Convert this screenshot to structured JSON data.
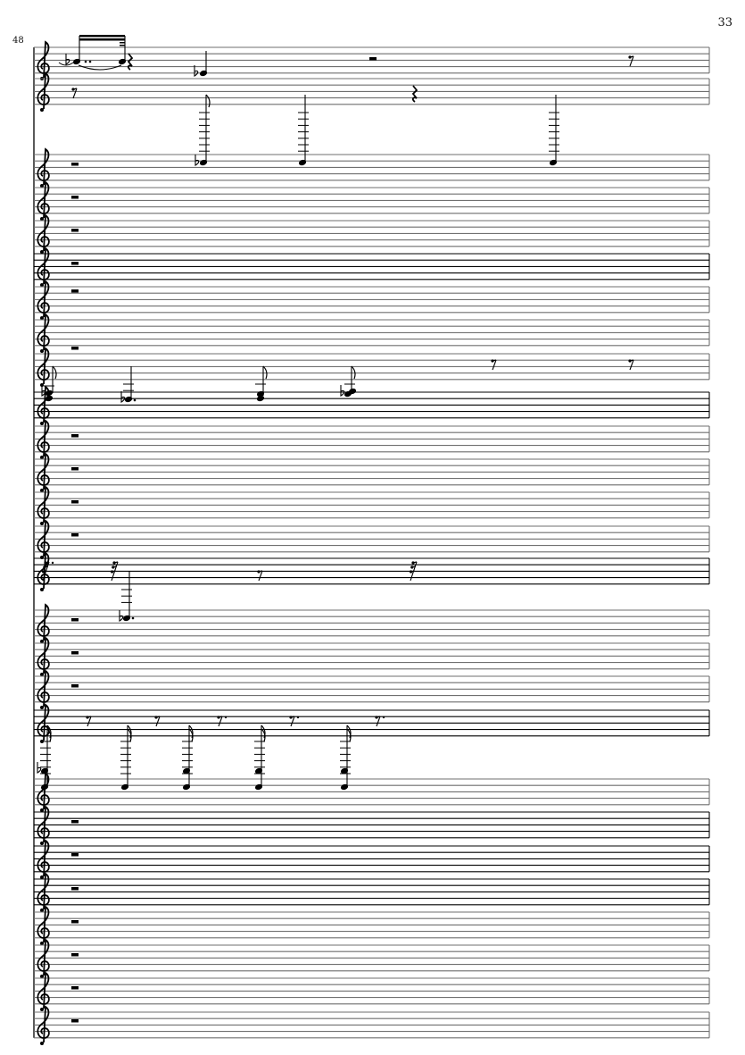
{
  "page": {
    "page_number": "33",
    "measure_number": "48"
  },
  "score": {
    "clef": "treble",
    "staff_count": 27,
    "ink_color": "#000000",
    "staff_line_color": "#6f6f6f"
  }
}
